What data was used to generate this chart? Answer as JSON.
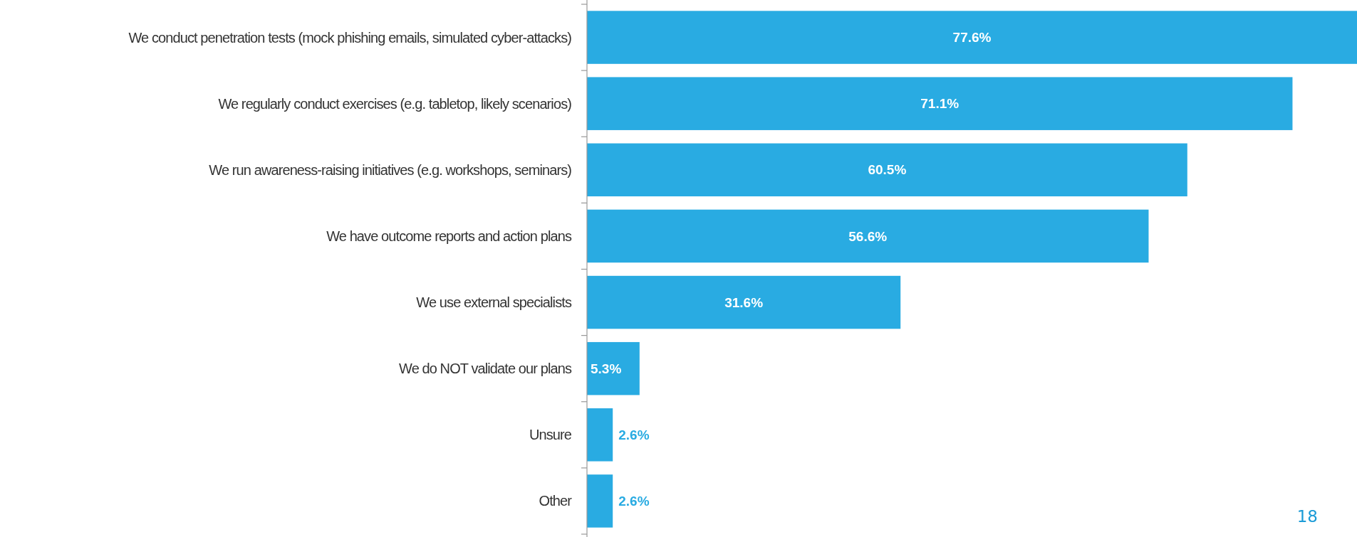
{
  "chart_data": {
    "type": "bar",
    "orientation": "horizontal",
    "data_labels": true,
    "categories": [
      "We conduct penetration tests (mock phishing emails, simulated cyber-attacks)",
      "We regularly conduct exercises (e.g. tabletop, likely scenarios)",
      "We run awareness-raising initiatives (e.g. workshops, seminars)",
      "We have outcome reports and action plans",
      "We use external specialists",
      "We do NOT validate our plans",
      "Unsure",
      "Other"
    ],
    "values": [
      77.6,
      71.1,
      60.5,
      56.6,
      31.6,
      5.3,
      2.6,
      2.6
    ],
    "value_labels": [
      "77.6%",
      "71.1%",
      "60.5%",
      "56.6%",
      "31.6%",
      "5.3%",
      "2.6%",
      "2.6%"
    ],
    "color": "#29abe2",
    "annotations": [
      "18"
    ]
  }
}
